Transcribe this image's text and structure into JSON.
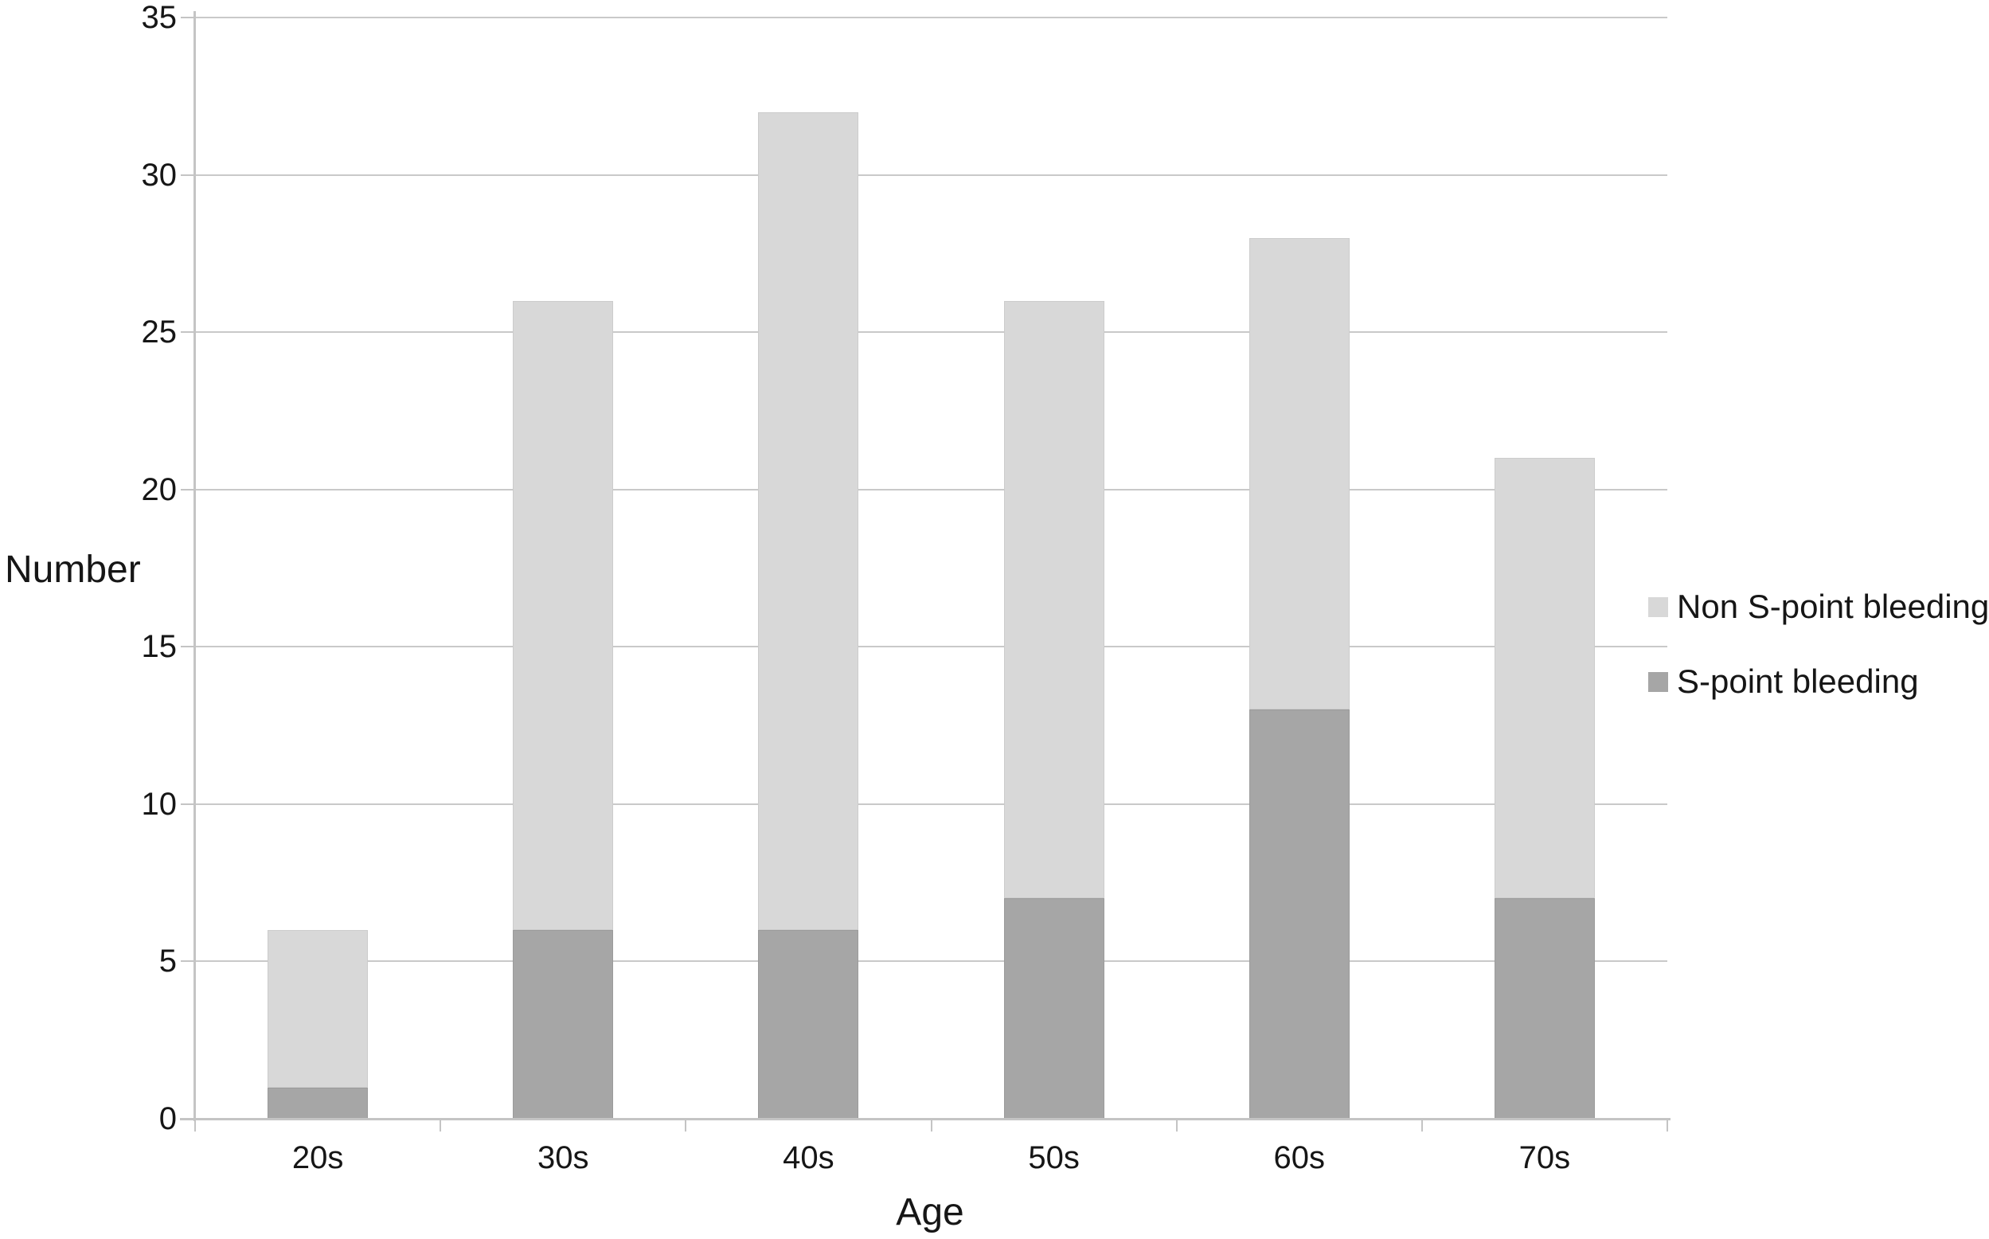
{
  "figure": {
    "background": "#ffffff",
    "text_color": "#161616",
    "gridline_color": "#c9c9c9",
    "axis_color": "#c4c4c4"
  },
  "chart_data": {
    "type": "bar",
    "stacked": true,
    "title": "",
    "xlabel": "Age",
    "ylabel": "Number",
    "categories": [
      "20s",
      "30s",
      "40s",
      "50s",
      "60s",
      "70s"
    ],
    "series": [
      {
        "name": "S-point bleeding",
        "color": "#a6a6a6",
        "values": [
          1,
          6,
          6,
          7,
          13,
          7
        ]
      },
      {
        "name": "Non S-point bleeding",
        "color": "#d8d8d8",
        "values": [
          5,
          20,
          26,
          19,
          15,
          14
        ]
      }
    ],
    "stack_order_note": "series listed bottom-to-top",
    "totals": [
      6,
      26,
      32,
      26,
      28,
      21
    ],
    "ylim": [
      0,
      35
    ],
    "yticks": [
      0,
      5,
      10,
      15,
      20,
      25,
      30,
      35
    ],
    "grid": "horizontal",
    "legend_position": "right"
  },
  "legend": {
    "items": [
      {
        "label": "Non S-point bleeding",
        "color": "#d8d8d8"
      },
      {
        "label": "S-point bleeding",
        "color": "#a6a6a6"
      }
    ]
  }
}
